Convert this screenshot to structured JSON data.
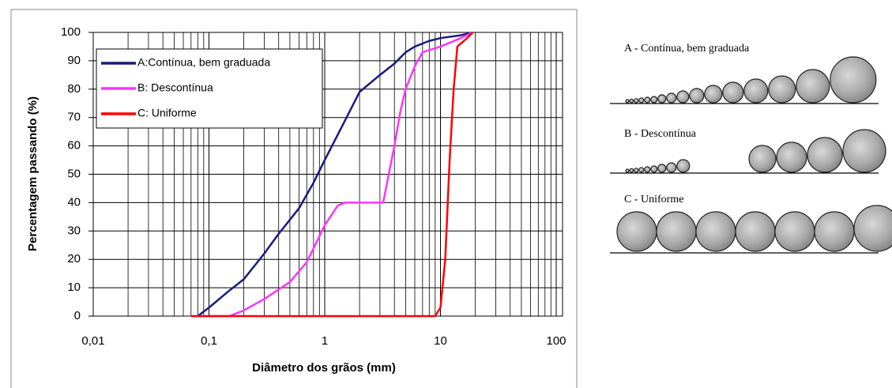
{
  "chart_data": {
    "type": "line",
    "xscale": "log",
    "grid": true,
    "legend": "upper left",
    "xlabel": "Diâmetro dos grãos (mm)",
    "ylabel": "Percentagem passando (%)",
    "xlim": [
      0.01,
      100
    ],
    "ylim": [
      0,
      100
    ],
    "xticks": [
      {
        "value": 0.01,
        "label": "0,01"
      },
      {
        "value": 0.1,
        "label": "0,1"
      },
      1,
      10,
      100
    ],
    "yticks": [
      0,
      10,
      20,
      30,
      40,
      50,
      60,
      70,
      80,
      90,
      100
    ],
    "series": [
      {
        "name": "A:Contínua, bem graduada",
        "color": "#1a1a80",
        "x": [
          0.08,
          0.1,
          0.15,
          0.2,
          0.3,
          0.4,
          0.6,
          0.8,
          1,
          1.5,
          2,
          3,
          4,
          5,
          6,
          8,
          10,
          15,
          19
        ],
        "values": [
          0,
          3,
          9,
          13,
          22,
          29,
          38,
          47,
          55,
          69,
          79,
          85,
          89,
          93,
          95,
          97,
          98,
          99,
          100
        ]
      },
      {
        "name": "B: Descontínua",
        "color": "#ff33ff",
        "x": [
          0.07,
          0.15,
          0.2,
          0.3,
          0.5,
          0.7,
          1,
          1.3,
          1.5,
          3.2,
          4,
          4.5,
          5,
          6,
          7,
          10,
          15,
          19
        ],
        "values": [
          0,
          0,
          2,
          6,
          12,
          19,
          32,
          39,
          40,
          40,
          60,
          72,
          80,
          88,
          93,
          95,
          98,
          100
        ]
      },
      {
        "name": "C: Uniforme",
        "color": "#ff0000",
        "x": [
          0.07,
          9,
          10,
          11,
          12,
          13,
          14,
          17,
          19
        ],
        "values": [
          0,
          0,
          3,
          20,
          55,
          80,
          95,
          98,
          100
        ]
      }
    ]
  },
  "diagram": {
    "labels": [
      "A - Contínua, bem graduada",
      "B - Descontínua",
      "C - Uniforme"
    ]
  }
}
